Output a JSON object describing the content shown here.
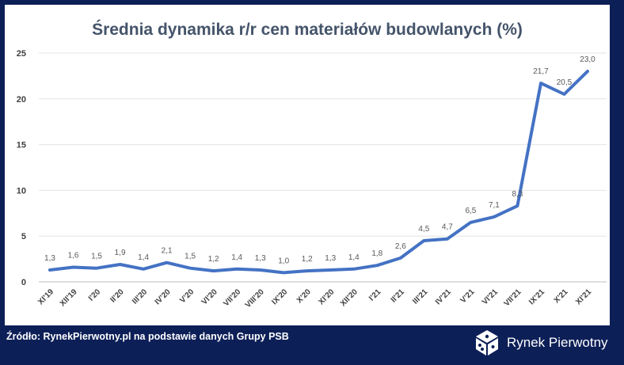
{
  "chart_data": {
    "type": "line",
    "title": "Średnia dynamika r/r cen materiałów budowlanych (%)",
    "categories": [
      "XI'19",
      "XII'19",
      "I'20",
      "II'20",
      "III'20",
      "IV'20",
      "V'20",
      "VI'20",
      "VII'20",
      "VIII'20",
      "IX'20",
      "X'20",
      "XI'20",
      "XII'20",
      "I'21",
      "II'21",
      "III'21",
      "IV'21",
      "V'21",
      "VI'21",
      "VII'21",
      "IX'21",
      "X'21",
      "XI'21"
    ],
    "series": [
      {
        "values": [
          1.3,
          1.6,
          1.5,
          1.9,
          1.4,
          2.1,
          1.5,
          1.2,
          1.4,
          1.3,
          1.0,
          1.2,
          1.3,
          1.4,
          1.8,
          2.6,
          4.5,
          4.7,
          6.5,
          7.1,
          8.3,
          21.7,
          20.5,
          23.0
        ],
        "data_labels": [
          "1,3",
          "1,6",
          "1,5",
          "1,9",
          "1,4",
          "2,1",
          "1,5",
          "1,2",
          "1,4",
          "1,3",
          "1,0",
          "1,2",
          "1,3",
          "1,4",
          "1,8",
          "2,6",
          "4,5",
          "4,7",
          "6,5",
          "7,1",
          "8,3",
          "21,7",
          "20,5",
          "23,0"
        ]
      }
    ],
    "ylim": [
      0,
      25
    ],
    "yticks": [
      "0",
      "5",
      "10",
      "15",
      "20",
      "25"
    ],
    "grid": true,
    "line_color": "#4472c4"
  },
  "footer": {
    "source": "Źródło: RynekPierwotny.pl na podstawie danych Grupy PSB",
    "brand": "Rynek Pierwotny"
  }
}
